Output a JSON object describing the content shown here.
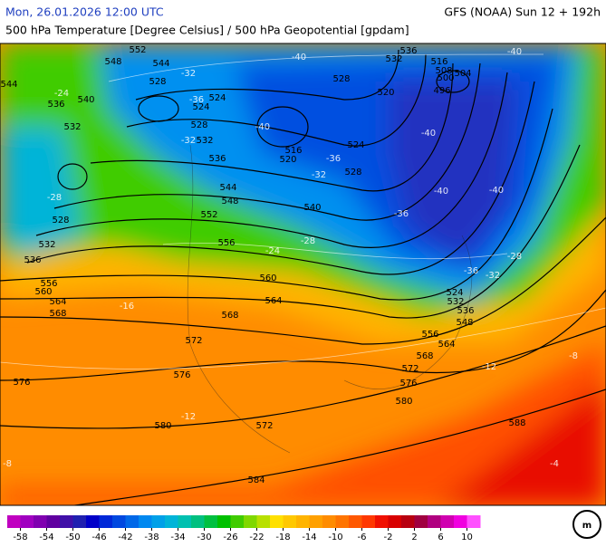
{
  "header": {
    "left": "Mon, 26.01.2026 12:00 UTC",
    "right": "GFS (NOAA) Sun 12 + 192h",
    "subtitle": "500 hPa Temperature [Degree Celsius] / 500 hPa Geopotential [gpdam]"
  },
  "geopotential_labels": [
    548,
    552,
    544,
    544,
    540,
    536,
    532,
    528,
    524,
    524,
    528,
    532,
    536,
    544,
    548,
    552,
    556,
    560,
    564,
    568,
    572,
    576,
    572,
    580,
    584,
    576,
    528,
    532,
    536,
    556,
    560,
    564,
    568,
    516,
    520,
    528,
    524,
    540,
    528,
    520,
    532,
    536,
    516,
    508,
    504,
    500,
    496,
    524,
    532,
    536,
    548,
    556,
    564,
    568,
    572,
    576,
    580,
    588
  ],
  "temperature_labels": [
    -32,
    -36,
    -32,
    -40,
    -40,
    -36,
    -32,
    -36,
    -40,
    -40,
    -40,
    -40,
    -28,
    -24,
    -28,
    -24,
    -28,
    -36,
    -32,
    -8,
    -12,
    -12,
    -4,
    -8,
    -16
  ],
  "colorbar": {
    "range": [
      -60,
      12
    ],
    "colors": [
      "#c000c0",
      "#a000c0",
      "#8000b0",
      "#6000a0",
      "#4010a8",
      "#2020b0",
      "#0000c8",
      "#0028d8",
      "#0048e0",
      "#0068e8",
      "#0088f0",
      "#00a0e8",
      "#00b4d8",
      "#00c0b0",
      "#00c080",
      "#00c040",
      "#00c000",
      "#40cc00",
      "#80d800",
      "#b8e000",
      "#ffe000",
      "#ffc800",
      "#ffb400",
      "#ffa000",
      "#ff8c00",
      "#ff7400",
      "#ff5800",
      "#ff3800",
      "#f01000",
      "#d80000",
      "#b80010",
      "#a00040",
      "#b00080",
      "#d000b0",
      "#f000e0",
      "#ff50ff"
    ],
    "ticks": [
      -58,
      -54,
      -50,
      -46,
      -42,
      -38,
      -34,
      -30,
      -26,
      -22,
      -18,
      -14,
      -10,
      -6,
      -2,
      2,
      6,
      10
    ]
  }
}
